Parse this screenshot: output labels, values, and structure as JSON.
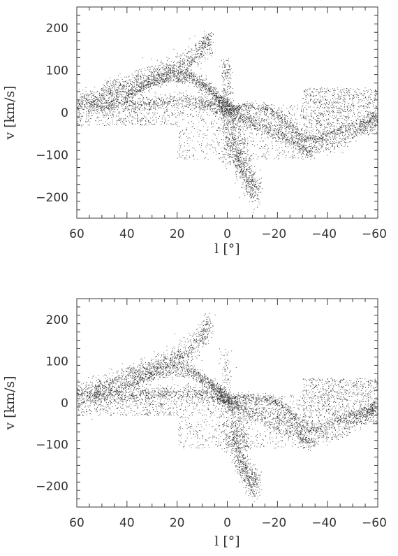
{
  "chart_data": [
    {
      "type": "scatter",
      "title": "",
      "xlabel": "l [°]",
      "ylabel": "v [km/s]",
      "xlim": [
        60,
        -60
      ],
      "ylim": [
        -250,
        250
      ],
      "xticks": [
        60,
        40,
        20,
        0,
        -20,
        -40,
        -60
      ],
      "yticks": [
        200,
        100,
        0,
        -100,
        -200
      ],
      "xtick_labels": [
        "60",
        "40",
        "20",
        "0",
        "−20",
        "−40",
        "−60"
      ],
      "ytick_labels": [
        "200",
        "100",
        "0",
        "−100",
        "−200"
      ],
      "grid": false,
      "point_color": "#2a2a2a",
      "series": [
        {
          "structures": [
            {
              "kind": "band",
              "x": [
                60,
                55,
                50,
                45,
                40,
                35,
                30,
                25,
                20,
                15,
                10,
                7
              ],
              "y": [
                20,
                30,
                40,
                52,
                62,
                75,
                85,
                95,
                108,
                122,
                150,
                175
              ],
              "spread": 14,
              "n": 1300
            },
            {
              "kind": "band",
              "x": [
                55,
                45,
                35,
                25,
                15,
                8,
                3,
                0,
                -5,
                -15,
                -25,
                -32,
                -45,
                -55,
                -60
              ],
              "y": [
                15,
                18,
                22,
                28,
                28,
                22,
                12,
                5,
                -8,
                -25,
                -55,
                -95,
                -70,
                -30,
                -10
              ],
              "spread": 9,
              "n": 1500
            },
            {
              "kind": "band",
              "x": [
                50,
                40,
                30,
                22,
                15,
                10,
                5,
                0,
                -5,
                -8
              ],
              "y": [
                20,
                38,
                75,
                98,
                92,
                70,
                40,
                12,
                -40,
                -120
              ],
              "spread": 6,
              "n": 800
            },
            {
              "kind": "band",
              "x": [
                40,
                30,
                22,
                14,
                8,
                4,
                0,
                -4,
                -10,
                -20,
                -30,
                -33
              ],
              "y": [
                45,
                68,
                80,
                76,
                58,
                40,
                22,
                -5,
                -30,
                -55,
                -80,
                -100
              ],
              "spread": 5,
              "n": 700
            },
            {
              "kind": "band",
              "x": [
                -2,
                -8,
                -15,
                -20,
                -25,
                -30,
                -35,
                -40,
                -50,
                -60
              ],
              "y": [
                10,
                15,
                10,
                -5,
                -30,
                -60,
                -65,
                -55,
                -30,
                -10
              ],
              "spread": 6,
              "n": 800
            },
            {
              "kind": "band",
              "x": [
                0.5,
                0.3,
                0.0,
                -0.3,
                -0.5
              ],
              "y": [
                125,
                60,
                0,
                -60,
                -125
              ],
              "spread": 3,
              "n": 350
            },
            {
              "kind": "band",
              "x": [
                -2,
                -5,
                -8,
                -12
              ],
              "y": [
                -60,
                -120,
                -160,
                -185
              ],
              "spread": 18,
              "n": 600
            },
            {
              "kind": "fill",
              "x": [
                -30,
                -60
              ],
              "y": [
                -50,
                60
              ],
              "n": 900
            },
            {
              "kind": "fill",
              "x": [
                60,
                20
              ],
              "y": [
                -30,
                30
              ],
              "n": 500
            },
            {
              "kind": "fill",
              "x": [
                20,
                -30
              ],
              "y": [
                -110,
                20
              ],
              "n": 700
            }
          ]
        }
      ]
    },
    {
      "type": "scatter",
      "title": "",
      "xlabel": "l [°]",
      "ylabel": "v [km/s]",
      "xlim": [
        60,
        -60
      ],
      "ylim": [
        -250,
        250
      ],
      "xticks": [
        60,
        40,
        20,
        0,
        -20,
        -40,
        -60
      ],
      "yticks": [
        200,
        100,
        0,
        -100,
        -200
      ],
      "xtick_labels": [
        "60",
        "40",
        "20",
        "0",
        "−20",
        "−40",
        "−60"
      ],
      "ytick_labels": [
        "200",
        "100",
        "0",
        "−100",
        "−200"
      ],
      "grid": false,
      "point_color": "#2a2a2a",
      "series": [
        {
          "structures": [
            {
              "kind": "band",
              "x": [
                60,
                55,
                50,
                45,
                40,
                35,
                30,
                25,
                20,
                15,
                10,
                7
              ],
              "y": [
                18,
                28,
                38,
                50,
                62,
                72,
                85,
                98,
                112,
                130,
                160,
                190
              ],
              "spread": 14,
              "n": 1300
            },
            {
              "kind": "band",
              "x": [
                55,
                45,
                35,
                25,
                15,
                8,
                3,
                0,
                -5,
                -15,
                -25,
                -32,
                -45,
                -55,
                -60
              ],
              "y": [
                12,
                15,
                20,
                24,
                25,
                22,
                12,
                2,
                -8,
                -22,
                -50,
                -95,
                -70,
                -30,
                -10
              ],
              "spread": 9,
              "n": 1500
            },
            {
              "kind": "band",
              "x": [
                50,
                40,
                30,
                22,
                15,
                10,
                5,
                0,
                -5,
                -8
              ],
              "y": [
                20,
                40,
                72,
                92,
                85,
                60,
                35,
                10,
                -50,
                -110
              ],
              "spread": 6,
              "n": 700
            },
            {
              "kind": "band",
              "x": [
                40,
                30,
                22,
                14,
                8,
                4,
                0,
                -4,
                -10,
                -20,
                -30,
                -33
              ],
              "y": [
                40,
                60,
                72,
                70,
                50,
                35,
                15,
                -10,
                -35,
                -60,
                -85,
                -100
              ],
              "spread": 5,
              "n": 650
            },
            {
              "kind": "band",
              "x": [
                -2,
                -8,
                -15,
                -20,
                -25,
                -30,
                -35,
                -40,
                -50,
                -60
              ],
              "y": [
                10,
                15,
                10,
                0,
                -25,
                -55,
                -65,
                -55,
                -30,
                -5
              ],
              "spread": 6,
              "n": 750
            },
            {
              "kind": "band",
              "x": [
                1.0,
                0.6,
                0.2,
                -0.2,
                -0.6
              ],
              "y": [
                130,
                70,
                0,
                -70,
                -120
              ],
              "spread": 6,
              "n": 150
            },
            {
              "kind": "band",
              "x": [
                -2,
                -5,
                -8,
                -12
              ],
              "y": [
                -60,
                -130,
                -180,
                -195
              ],
              "spread": 18,
              "n": 650
            },
            {
              "kind": "fill",
              "x": [
                -30,
                -60
              ],
              "y": [
                -50,
                60
              ],
              "n": 900
            },
            {
              "kind": "fill",
              "x": [
                60,
                20
              ],
              "y": [
                -30,
                30
              ],
              "n": 500
            },
            {
              "kind": "fill",
              "x": [
                20,
                -30
              ],
              "y": [
                -110,
                20
              ],
              "n": 700
            }
          ]
        }
      ]
    }
  ]
}
